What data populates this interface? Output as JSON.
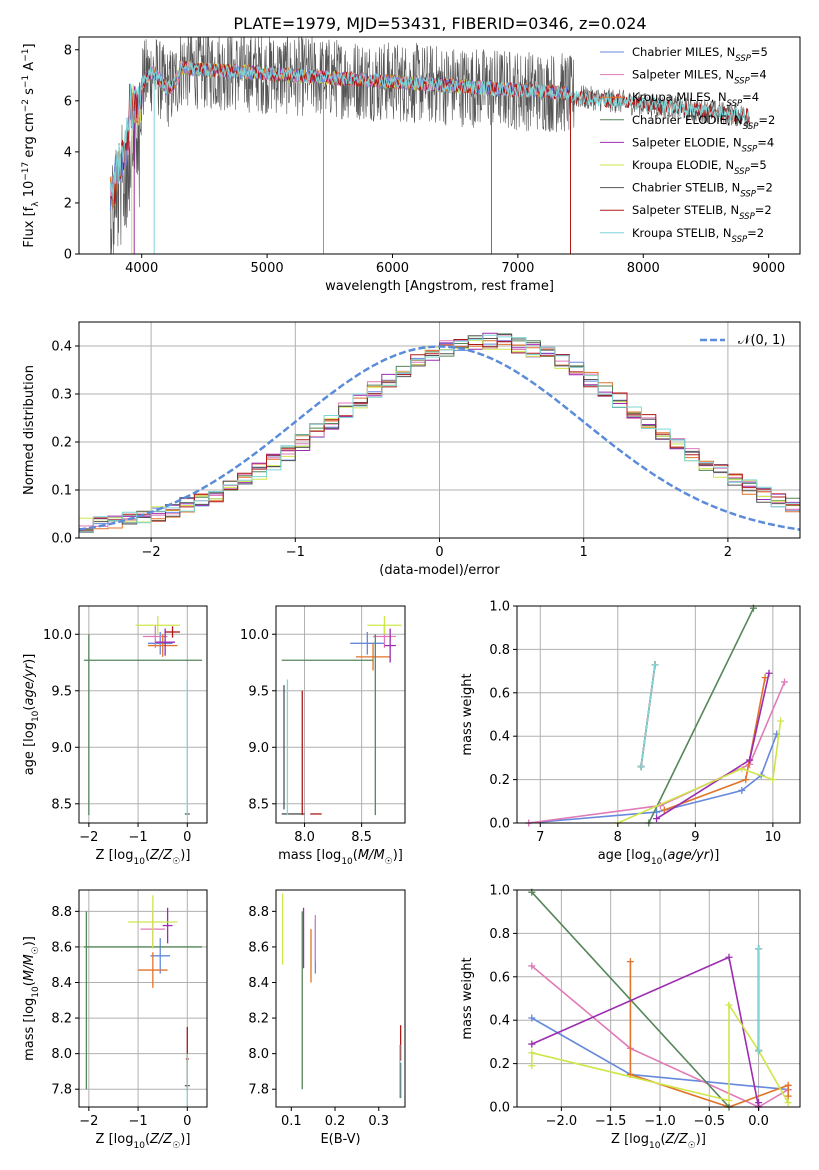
{
  "figure_title": "PLATE=1979, MJD=53431, FIBERID=0346, z=0.024",
  "colors": {
    "Chabrier MILES": "#6688dd",
    "Salpeter MILES": "#e07ab8",
    "Kroupa MILES": "#e0742a",
    "Chabrier ELODIE": "#55865a",
    "Salpeter ELODIE": "#9c2cb0",
    "Kroupa ELODIE": "#cfe64a",
    "Chabrier STELIB": "#555555",
    "Salpeter STELIB": "#b01818",
    "Kroupa STELIB": "#7fd6d6",
    "normal": "#5b8cd9"
  },
  "chart_data": [
    {
      "id": "spectrum",
      "type": "line",
      "xlabel": "wavelength [Angstrom, rest frame]",
      "ylabel": "Flux [f_λ 10^-17 erg cm^-2 s^-1 A^-1]",
      "xlim": [
        3500,
        9250
      ],
      "ylim": [
        0,
        8.5
      ],
      "xticks": [
        4000,
        5000,
        6000,
        7000,
        8000,
        9000
      ],
      "yticks": [
        0,
        2,
        4,
        6,
        8
      ],
      "grid": false,
      "legend_position": "top-right",
      "series": [
        {
          "name": "Chabrier MILES, N_SSP=5",
          "label_main": "Chabrier MILES, N",
          "label_sub": "SSP",
          "label_tail": "=5",
          "range": [
            3750,
            7410
          ]
        },
        {
          "name": "Salpeter MILES, N_SSP=4",
          "label_main": "Salpeter MILES, N",
          "label_sub": "SSP",
          "label_tail": "=4",
          "range": [
            3750,
            7410
          ]
        },
        {
          "name": "Kroupa MILES, N_SSP=4",
          "label_main": "Kroupa MILES, N",
          "label_sub": "SSP",
          "label_tail": "=4",
          "range": [
            3750,
            7410
          ]
        },
        {
          "name": "Chabrier ELODIE, N_SSP=2",
          "label_main": "Chabrier ELODIE, N",
          "label_sub": "SSP",
          "label_tail": "=2",
          "range": [
            3920,
            6800
          ]
        },
        {
          "name": "Salpeter ELODIE, N_SSP=4",
          "label_main": "Salpeter ELODIE, N",
          "label_sub": "SSP",
          "label_tail": "=4",
          "range": [
            3920,
            6800
          ]
        },
        {
          "name": "Kroupa ELODIE, N_SSP=5",
          "label_main": "Kroupa ELODIE, N",
          "label_sub": "SSP",
          "label_tail": "=5",
          "range": [
            3920,
            6800
          ]
        },
        {
          "name": "Chabrier STELIB, N_SSP=2",
          "label_main": "Chabrier STELIB, N",
          "label_sub": "SSP",
          "label_tail": "=2",
          "range": [
            3750,
            8850
          ]
        },
        {
          "name": "Salpeter STELIB, N_SSP=2",
          "label_main": "Salpeter STELIB, N",
          "label_sub": "SSP",
          "label_tail": "=2",
          "range": [
            3750,
            8850
          ]
        },
        {
          "name": "Kroupa STELIB, N_SSP=2",
          "label_main": "Kroupa STELIB, N",
          "label_sub": "SSP",
          "label_tail": "=2",
          "range": [
            3750,
            8850
          ]
        }
      ]
    },
    {
      "id": "residuals",
      "type": "histogram",
      "xlabel": "(data-model)/error",
      "ylabel": "Normed distribution",
      "xlim": [
        -2.5,
        2.5
      ],
      "ylim": [
        0,
        0.45
      ],
      "xticks": [
        -2,
        -1,
        0,
        1,
        2
      ],
      "yticks": [
        0.0,
        0.1,
        0.2,
        0.3,
        0.4
      ],
      "grid": true,
      "legend_position": "top-right",
      "legend": [
        {
          "name": "N(0,1)",
          "label": "𝒩(0, 1)"
        }
      ],
      "bin_width": 0.1,
      "gaussian": {
        "mean": 0,
        "sigma": 1
      }
    },
    {
      "id": "age_vs_Z",
      "type": "errorbar",
      "xlabel": "Z [log10(Z/Z☉)]",
      "ylabel": "age [log10(age/yr)]",
      "xlim": [
        -2.2,
        0.4
      ],
      "ylim": [
        8.33,
        10.25
      ],
      "xticks": [
        -2,
        -1,
        0
      ],
      "yticks": [
        8.5,
        9.0,
        9.5,
        10.0
      ],
      "grid": true,
      "points": [
        {
          "model": "Chabrier MILES",
          "x": -0.55,
          "xerr": 0.25,
          "y": 9.92,
          "yerr": 0.1
        },
        {
          "model": "Salpeter MILES",
          "x": -0.65,
          "xerr": 0.25,
          "y": 9.98,
          "yerr": 0.1
        },
        {
          "model": "Kroupa MILES",
          "x": -0.5,
          "xerr": 0.3,
          "y": 9.9,
          "yerr": 0.1
        },
        {
          "model": "Chabrier ELODIE",
          "x": -0.9,
          "xerr": 1.2,
          "y": 9.77,
          "yerr": 0.0
        },
        {
          "model": "Chabrier ELODIE",
          "x": -2.0,
          "xerr": 0.0,
          "y": 9.2,
          "yerr": 0.8
        },
        {
          "model": "Salpeter ELODIE",
          "x": -0.45,
          "xerr": 0.2,
          "y": 9.93,
          "yerr": 0.12
        },
        {
          "model": "Kroupa ELODIE",
          "x": -0.6,
          "xerr": 0.45,
          "y": 10.08,
          "yerr": 0.08
        },
        {
          "model": "Chabrier STELIB",
          "x": 0.0,
          "xerr": 0.05,
          "y": 8.41,
          "yerr": 0.0
        },
        {
          "model": "Salpeter STELIB",
          "x": -0.3,
          "xerr": 0.15,
          "y": 10.02,
          "yerr": 0.05
        },
        {
          "model": "Kroupa STELIB",
          "x": 0.0,
          "xerr": 0.0,
          "y": 9.0,
          "yerr": 0.6
        }
      ]
    },
    {
      "id": "age_vs_mass",
      "type": "errorbar",
      "xlabel": "mass [log10(M/M☉)]",
      "ylabel": "",
      "xlim": [
        7.75,
        8.88
      ],
      "ylim": [
        8.33,
        10.25
      ],
      "xticks": [
        8.0,
        8.5
      ],
      "yticks": [
        8.5,
        9.0,
        9.5,
        10.0
      ],
      "grid": true,
      "points": [
        {
          "model": "Chabrier MILES",
          "x": 8.55,
          "xerr": 0.15,
          "y": 9.92,
          "yerr": 0.1
        },
        {
          "model": "Salpeter MILES",
          "x": 8.7,
          "xerr": 0.1,
          "y": 9.98,
          "yerr": 0.1
        },
        {
          "model": "Kroupa MILES",
          "x": 8.6,
          "xerr": 0.15,
          "y": 9.8,
          "yerr": 0.12
        },
        {
          "model": "Chabrier ELODIE",
          "x": 8.2,
          "xerr": 0.4,
          "y": 9.77,
          "yerr": 0.0
        },
        {
          "model": "Chabrier ELODIE",
          "x": 8.62,
          "xerr": 0.0,
          "y": 9.2,
          "yerr": 0.8
        },
        {
          "model": "Salpeter ELODIE",
          "x": 8.75,
          "xerr": 0.05,
          "y": 9.9,
          "yerr": 0.15
        },
        {
          "model": "Kroupa ELODIE",
          "x": 8.7,
          "xerr": 0.15,
          "y": 10.08,
          "yerr": 0.08
        },
        {
          "model": "Chabrier STELIB",
          "x": 7.82,
          "xerr": 0.0,
          "y": 9.0,
          "yerr": 0.55
        },
        {
          "model": "Chabrier STELIB",
          "x": 7.9,
          "xerr": 0.1,
          "y": 8.41,
          "yerr": 0.0
        },
        {
          "model": "Salpeter STELIB",
          "x": 7.98,
          "xerr": 0.0,
          "y": 8.95,
          "yerr": 0.55
        },
        {
          "model": "Salpeter STELIB",
          "x": 8.1,
          "xerr": 0.05,
          "y": 8.41,
          "yerr": 0.0
        },
        {
          "model": "Kroupa STELIB",
          "x": 7.85,
          "xerr": 0.0,
          "y": 9.0,
          "yerr": 0.6
        }
      ]
    },
    {
      "id": "weight_vs_age",
      "type": "line",
      "xlabel": "age [log10(age/yr)]",
      "ylabel": "mass weight",
      "xlim": [
        6.7,
        10.35
      ],
      "ylim": [
        0,
        1.0
      ],
      "xticks": [
        7,
        8,
        9,
        10
      ],
      "yticks": [
        0.0,
        0.2,
        0.4,
        0.6,
        0.8,
        1.0
      ],
      "grid": true,
      "series": [
        {
          "model": "Chabrier MILES",
          "x": [
            6.85,
            8.5,
            9.6,
            9.85,
            10.05
          ],
          "y": [
            0.0,
            0.05,
            0.15,
            0.22,
            0.41
          ]
        },
        {
          "model": "Salpeter MILES",
          "x": [
            6.85,
            8.55,
            9.7,
            10.15
          ],
          "y": [
            0.0,
            0.08,
            0.27,
            0.65
          ]
        },
        {
          "model": "Kroupa MILES",
          "x": [
            8.6,
            9.65,
            9.9
          ],
          "y": [
            0.06,
            0.2,
            0.67
          ]
        },
        {
          "model": "Chabrier ELODIE",
          "x": [
            8.4,
            9.75
          ],
          "y": [
            0.0,
            0.99
          ]
        },
        {
          "model": "Salpeter ELODIE",
          "x": [
            8.5,
            9.7,
            9.95
          ],
          "y": [
            0.02,
            0.29,
            0.69
          ]
        },
        {
          "model": "Kroupa ELODIE",
          "x": [
            8.0,
            9.6,
            10.0,
            10.1
          ],
          "y": [
            0.0,
            0.25,
            0.2,
            0.47
          ]
        },
        {
          "model": "Chabrier STELIB",
          "x": [
            8.3,
            8.48
          ],
          "y": [
            0.26,
            0.73
          ]
        },
        {
          "model": "Salpeter STELIB",
          "x": [
            8.3,
            8.48
          ],
          "y": [
            0.26,
            0.73
          ]
        },
        {
          "model": "Kroupa STELIB",
          "x": [
            8.3,
            8.48
          ],
          "y": [
            0.26,
            0.73
          ]
        }
      ]
    },
    {
      "id": "mass_vs_Z",
      "type": "errorbar",
      "xlabel": "Z [log10(Z/Z☉)]",
      "ylabel": "mass [log10(M/M☉)]",
      "xlim": [
        -2.2,
        0.4
      ],
      "ylim": [
        7.7,
        8.92
      ],
      "xticks": [
        -2,
        -1,
        0
      ],
      "yticks": [
        7.8,
        8.0,
        8.2,
        8.4,
        8.6,
        8.8
      ],
      "grid": true,
      "points": [
        {
          "model": "Chabrier MILES",
          "x": -0.55,
          "xerr": 0.2,
          "y": 8.55,
          "yerr": 0.1
        },
        {
          "model": "Salpeter MILES",
          "x": -0.7,
          "xerr": 0.25,
          "y": 8.7,
          "yerr": 0.1
        },
        {
          "model": "Kroupa MILES",
          "x": -0.7,
          "xerr": 0.3,
          "y": 8.47,
          "yerr": 0.1
        },
        {
          "model": "Chabrier ELODIE",
          "x": -0.9,
          "xerr": 1.2,
          "y": 8.6,
          "yerr": 0.0
        },
        {
          "model": "Chabrier ELODIE",
          "x": -2.05,
          "xerr": 0.0,
          "y": 8.3,
          "yerr": 0.5
        },
        {
          "model": "Salpeter ELODIE",
          "x": -0.4,
          "xerr": 0.1,
          "y": 8.72,
          "yerr": 0.1
        },
        {
          "model": "Kroupa ELODIE",
          "x": -0.7,
          "xerr": 0.5,
          "y": 8.74,
          "yerr": 0.15
        },
        {
          "model": "Chabrier STELIB",
          "x": 0.0,
          "xerr": 0.05,
          "y": 7.82,
          "yerr": 0.0
        },
        {
          "model": "Salpeter STELIB",
          "x": 0.0,
          "xerr": 0.03,
          "y": 7.97,
          "yerr": 0.18
        },
        {
          "model": "Kroupa STELIB",
          "x": 0.0,
          "xerr": 0.0,
          "y": 7.85,
          "yerr": 0.15
        }
      ]
    },
    {
      "id": "mass_vs_ebv",
      "type": "errorbar",
      "xlabel": "E(B-V)",
      "ylabel": "",
      "xlim": [
        0.065,
        0.36
      ],
      "ylim": [
        7.7,
        8.92
      ],
      "xticks": [
        0.1,
        0.2,
        0.3
      ],
      "yticks": [
        7.8,
        8.0,
        8.2,
        8.4,
        8.6,
        8.8
      ],
      "grid": false,
      "points": [
        {
          "model": "Chabrier MILES",
          "x": 0.155,
          "xerr": 0.0,
          "y": 8.6,
          "yerr": 0.15
        },
        {
          "model": "Salpeter MILES",
          "x": 0.155,
          "xerr": 0.0,
          "y": 8.65,
          "yerr": 0.13
        },
        {
          "model": "Kroupa MILES",
          "x": 0.145,
          "xerr": 0.0,
          "y": 8.55,
          "yerr": 0.15
        },
        {
          "model": "Chabrier ELODIE",
          "x": 0.125,
          "xerr": 0.0,
          "y": 8.3,
          "yerr": 0.5
        },
        {
          "model": "Salpeter ELODIE",
          "x": 0.128,
          "xerr": 0.0,
          "y": 8.65,
          "yerr": 0.17
        },
        {
          "model": "Kroupa ELODIE",
          "x": 0.08,
          "xerr": 0.0,
          "y": 8.7,
          "yerr": 0.2
        },
        {
          "model": "Chabrier STELIB",
          "x": 0.35,
          "xerr": 0.0,
          "y": 7.85,
          "yerr": 0.1
        },
        {
          "model": "Salpeter STELIB",
          "x": 0.35,
          "xerr": 0.0,
          "y": 8.06,
          "yerr": 0.1
        },
        {
          "model": "Kroupa STELIB",
          "x": 0.348,
          "xerr": 0.0,
          "y": 7.9,
          "yerr": 0.15
        }
      ]
    },
    {
      "id": "weight_vs_Z",
      "type": "line",
      "xlabel": "Z [log10(Z/Z☉)]",
      "ylabel": "mass weight",
      "xlim": [
        -2.45,
        0.42
      ],
      "ylim": [
        0,
        1.0
      ],
      "xticks": [
        -2.0,
        -1.5,
        -1.0,
        -0.5,
        0.0
      ],
      "yticks": [
        0.0,
        0.2,
        0.4,
        0.6,
        0.8,
        1.0
      ],
      "grid": true,
      "series": [
        {
          "model": "Chabrier MILES",
          "x": [
            -2.3,
            -1.3,
            0.3
          ],
          "y": [
            0.41,
            0.15,
            0.08
          ]
        },
        {
          "model": "Salpeter MILES",
          "x": [
            -2.3,
            -1.3,
            0.0,
            0.3
          ],
          "y": [
            0.65,
            0.27,
            0.0,
            0.08
          ]
        },
        {
          "model": "Kroupa MILES",
          "x": [
            -1.3,
            -1.3,
            -0.3,
            0.3,
            0.3
          ],
          "y": [
            0.67,
            0.15,
            0.0,
            0.1,
            0.05
          ]
        },
        {
          "model": "Chabrier ELODIE",
          "x": [
            -2.3,
            -0.3
          ],
          "y": [
            0.99,
            0.0
          ]
        },
        {
          "model": "Salpeter ELODIE",
          "x": [
            -2.3,
            -0.3,
            0.0,
            0.0
          ],
          "y": [
            0.29,
            0.69,
            0.0,
            0.02
          ]
        },
        {
          "model": "Kroupa ELODIE",
          "x": [
            -2.3,
            -2.3,
            -0.3,
            -0.3,
            0.0,
            0.0,
            0.3
          ],
          "y": [
            0.19,
            0.25,
            0.03,
            0.47,
            0.26,
            0.26,
            0.02
          ]
        },
        {
          "model": "Chabrier STELIB",
          "x": [
            0.0,
            0.0
          ],
          "y": [
            0.26,
            0.73
          ]
        },
        {
          "model": "Salpeter STELIB",
          "x": [
            0.0,
            0.0
          ],
          "y": [
            0.26,
            0.73
          ]
        },
        {
          "model": "Kroupa STELIB",
          "x": [
            0.0,
            0.0
          ],
          "y": [
            0.26,
            0.73
          ]
        }
      ]
    }
  ]
}
